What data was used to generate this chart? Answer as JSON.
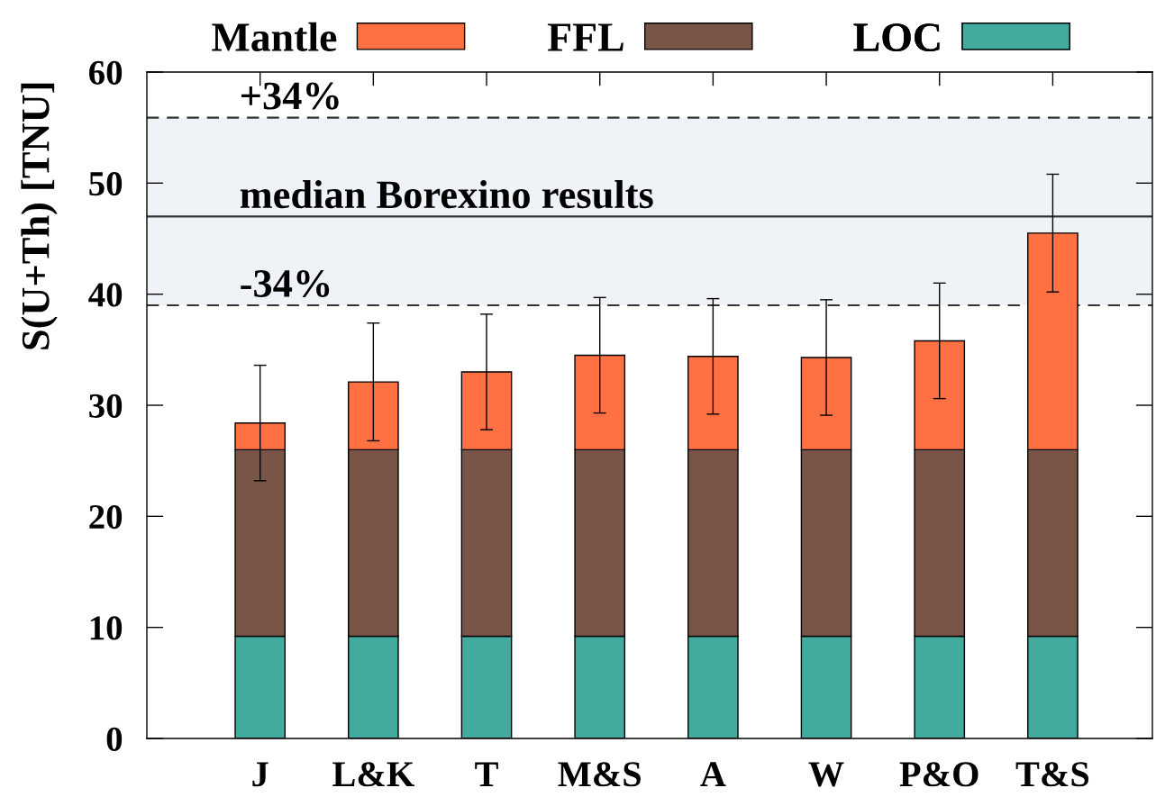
{
  "chart_data": {
    "type": "bar",
    "stacked": true,
    "ylabel": "S(U+Th) [TNU]",
    "categories": [
      "J",
      "L&K",
      "T",
      "M&S",
      "A",
      "W",
      "P&O",
      "T&S"
    ],
    "series": [
      {
        "name": "LOC",
        "color": "#43ab9e",
        "values": [
          9.2,
          9.2,
          9.2,
          9.2,
          9.2,
          9.2,
          9.2,
          9.2
        ]
      },
      {
        "name": "FFL",
        "color": "#795548",
        "values": [
          16.8,
          16.8,
          16.8,
          16.8,
          16.8,
          16.8,
          16.8,
          16.8
        ]
      },
      {
        "name": "Mantle",
        "color": "#ff7043",
        "values": [
          2.4,
          6.1,
          7.0,
          8.5,
          8.4,
          8.3,
          9.8,
          19.5
        ],
        "errors": [
          5.2,
          5.3,
          5.2,
          5.2,
          5.2,
          5.2,
          5.2,
          5.3
        ]
      }
    ],
    "ylim": [
      0,
      60
    ],
    "yticks": [
      0,
      10,
      20,
      30,
      40,
      50,
      60
    ],
    "ref_lines": [
      {
        "axis": "y",
        "value": 55.9,
        "line_style": "dashed",
        "color": "#333333"
      },
      {
        "axis": "y",
        "value": 47.0,
        "label": "median Borexino results",
        "line_style": "solid",
        "color": "#333333"
      },
      {
        "axis": "y",
        "value": 39.0,
        "line_style": "dashed",
        "color": "#333333"
      }
    ],
    "bands": [
      {
        "axis": "y",
        "from": 39.0,
        "to": 55.9,
        "color": "#eff3f7"
      }
    ],
    "annotations": [
      {
        "text": "+34%",
        "y": 55.9
      },
      {
        "text": "-34%",
        "y": 39.0
      }
    ],
    "legend": "top"
  }
}
